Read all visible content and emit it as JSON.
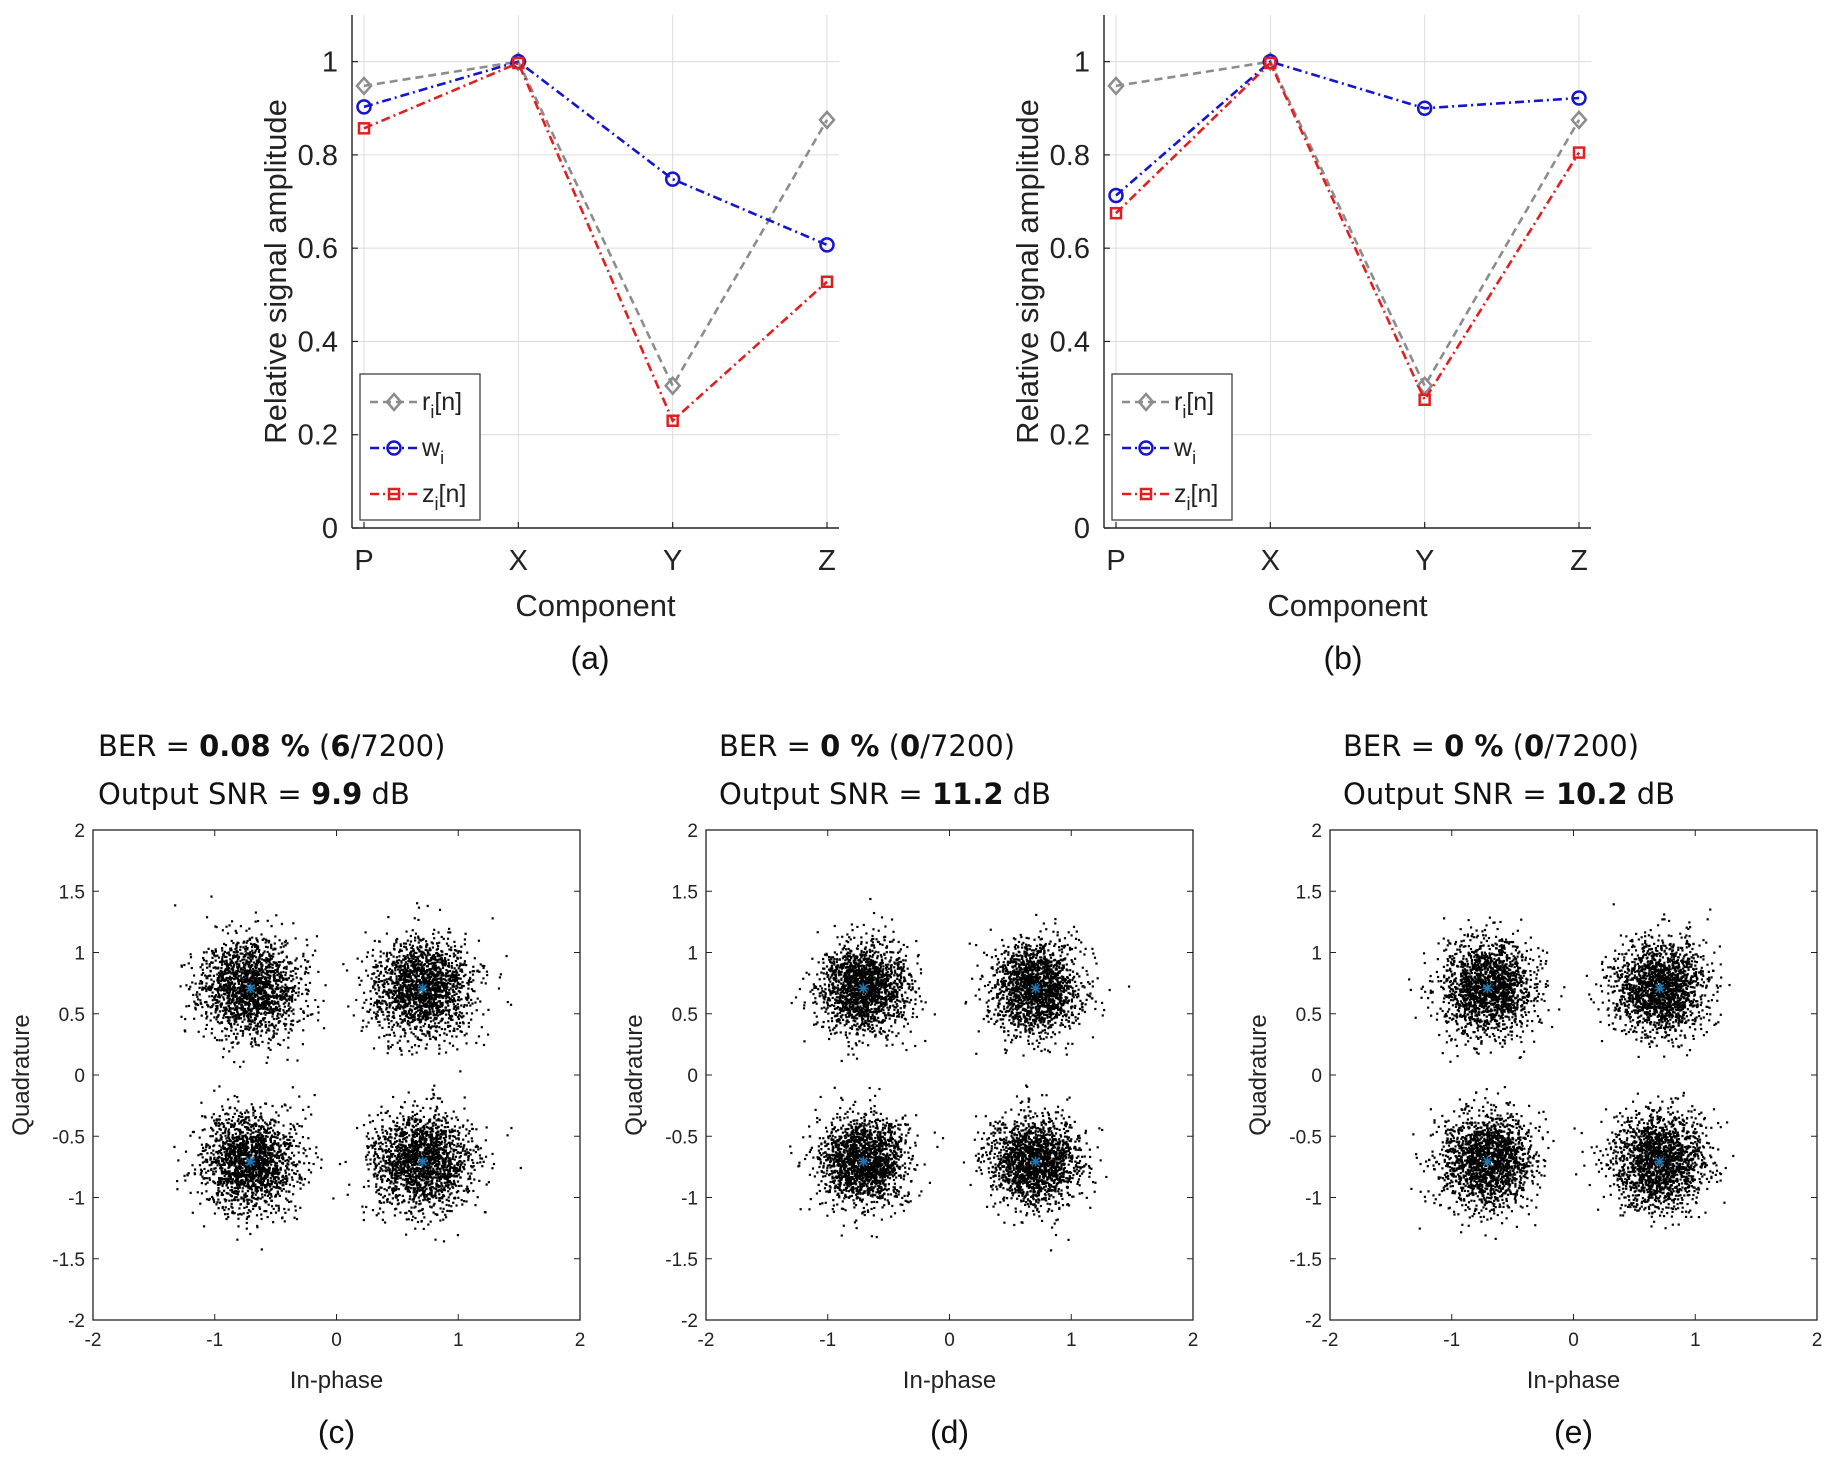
{
  "chart_data": [
    {
      "id": "a",
      "type": "line",
      "caption": "(a)",
      "xlabel": "Component",
      "ylabel": "Relative signal amplitude",
      "categories": [
        "P",
        "X",
        "Y",
        "Z"
      ],
      "ylim": [
        0,
        1.1
      ],
      "yticks": [
        0,
        0.2,
        0.4,
        0.6,
        0.8,
        1
      ],
      "ytick_labels": [
        "0",
        "0.2",
        "0.4",
        "0.6",
        "0.8",
        "1"
      ],
      "grid": true,
      "legend_position": "bottom-left",
      "series": [
        {
          "name": "r_i[n]",
          "label_main": "r",
          "label_sub": "i",
          "label_tail": "[n]",
          "color": "#8c8c8c",
          "dash": "8,5",
          "marker": "diamond",
          "values": [
            0.948,
            1.0,
            0.305,
            0.875
          ]
        },
        {
          "name": "w_i",
          "label_main": "w",
          "label_sub": "i",
          "label_tail": "",
          "color": "#1515d0",
          "dash": "9,4,2,4",
          "marker": "circle",
          "values": [
            0.903,
            1.0,
            0.748,
            0.607
          ]
        },
        {
          "name": "z_i[n]",
          "label_main": "z",
          "label_sub": "i",
          "label_tail": "[n]",
          "color": "#e02020",
          "dash": "9,4,2,4",
          "marker": "square",
          "values": [
            0.857,
            0.997,
            0.23,
            0.528
          ]
        }
      ]
    },
    {
      "id": "b",
      "type": "line",
      "caption": "(b)",
      "xlabel": "Component",
      "ylabel": "Relative signal amplitude",
      "categories": [
        "P",
        "X",
        "Y",
        "Z"
      ],
      "ylim": [
        0,
        1.1
      ],
      "yticks": [
        0,
        0.2,
        0.4,
        0.6,
        0.8,
        1
      ],
      "ytick_labels": [
        "0",
        "0.2",
        "0.4",
        "0.6",
        "0.8",
        "1"
      ],
      "grid": true,
      "legend_position": "bottom-left",
      "series": [
        {
          "name": "r_i[n]",
          "label_main": "r",
          "label_sub": "i",
          "label_tail": "[n]",
          "color": "#8c8c8c",
          "dash": "8,5",
          "marker": "diamond",
          "values": [
            0.948,
            1.0,
            0.305,
            0.875
          ]
        },
        {
          "name": "w_i",
          "label_main": "w",
          "label_sub": "i",
          "label_tail": "",
          "color": "#1515d0",
          "dash": "9,4,2,4",
          "marker": "circle",
          "values": [
            0.713,
            1.0,
            0.9,
            0.922
          ]
        },
        {
          "name": "z_i[n]",
          "label_main": "z",
          "label_sub": "i",
          "label_tail": "[n]",
          "color": "#e02020",
          "dash": "9,4,2,4",
          "marker": "square",
          "values": [
            0.675,
            0.997,
            0.275,
            0.805
          ]
        }
      ]
    },
    {
      "id": "c",
      "type": "scatter",
      "caption": "(c)",
      "xlabel": "In-phase",
      "ylabel": "Quadrature",
      "xlim": [
        -2,
        2
      ],
      "ylim": [
        -2,
        2
      ],
      "xticks": [
        -2,
        -1,
        0,
        1,
        2
      ],
      "xtick_labels": [
        "-2",
        "-1",
        "0",
        "1",
        "2"
      ],
      "yticks": [
        -2,
        -1.5,
        -1,
        -0.5,
        0,
        0.5,
        1,
        1.5,
        2
      ],
      "ytick_labels": [
        "-2",
        "-1.5",
        "-1",
        "-0.5",
        "0",
        "0.5",
        "1",
        "1.5",
        "2"
      ],
      "grid": false,
      "ideal_points": [
        [
          -0.707,
          0.707
        ],
        [
          0.707,
          0.707
        ],
        [
          -0.707,
          -0.707
        ],
        [
          0.707,
          -0.707
        ]
      ],
      "ideal_color": "#1f77b4",
      "samples_per_cluster": 1800,
      "cluster_spread": 0.2,
      "ber_prefix": "BER = ",
      "ber_value": "0.08 %",
      "ber_open": " (",
      "ber_errors": "6",
      "ber_total": "/7200)",
      "snr_prefix": "Output SNR = ",
      "snr_value": "9.9",
      "snr_unit": " dB"
    },
    {
      "id": "d",
      "type": "scatter",
      "caption": "(d)",
      "xlabel": "In-phase",
      "ylabel": "Quadrature",
      "xlim": [
        -2,
        2
      ],
      "ylim": [
        -2,
        2
      ],
      "xticks": [
        -2,
        -1,
        0,
        1,
        2
      ],
      "xtick_labels": [
        "-2",
        "-1",
        "0",
        "1",
        "2"
      ],
      "yticks": [
        -2,
        -1.5,
        -1,
        -0.5,
        0,
        0.5,
        1,
        1.5,
        2
      ],
      "ytick_labels": [
        "-2",
        "-1.5",
        "-1",
        "-0.5",
        "0",
        "0.5",
        "1",
        "1.5",
        "2"
      ],
      "grid": false,
      "ideal_points": [
        [
          -0.707,
          0.707
        ],
        [
          0.707,
          0.707
        ],
        [
          -0.707,
          -0.707
        ],
        [
          0.707,
          -0.707
        ]
      ],
      "ideal_color": "#1f77b4",
      "samples_per_cluster": 1800,
      "cluster_spread": 0.18,
      "ber_prefix": "BER = ",
      "ber_value": "0 %",
      "ber_open": " (",
      "ber_errors": "0",
      "ber_total": "/7200)",
      "snr_prefix": "Output SNR = ",
      "snr_value": "11.2",
      "snr_unit": " dB"
    },
    {
      "id": "e",
      "type": "scatter",
      "caption": "(e)",
      "xlabel": "In-phase",
      "ylabel": "Quadrature",
      "xlim": [
        -2,
        2
      ],
      "ylim": [
        -2,
        2
      ],
      "xticks": [
        -2,
        -1,
        0,
        1,
        2
      ],
      "xtick_labels": [
        "-2",
        "-1",
        "0",
        "1",
        "2"
      ],
      "yticks": [
        -2,
        -1.5,
        -1,
        -0.5,
        0,
        0.5,
        1,
        1.5,
        2
      ],
      "ytick_labels": [
        "-2",
        "-1.5",
        "-1",
        "-0.5",
        "0",
        "0.5",
        "1",
        "1.5",
        "2"
      ],
      "grid": false,
      "ideal_points": [
        [
          -0.707,
          0.707
        ],
        [
          0.707,
          0.707
        ],
        [
          -0.707,
          -0.707
        ],
        [
          0.707,
          -0.707
        ]
      ],
      "ideal_color": "#1f77b4",
      "samples_per_cluster": 1800,
      "cluster_spread": 0.19,
      "ber_prefix": "BER = ",
      "ber_value": "0 %",
      "ber_open": " (",
      "ber_errors": "0",
      "ber_total": "/7200)",
      "snr_prefix": "Output SNR = ",
      "snr_value": "10.2",
      "snr_unit": " dB"
    }
  ]
}
